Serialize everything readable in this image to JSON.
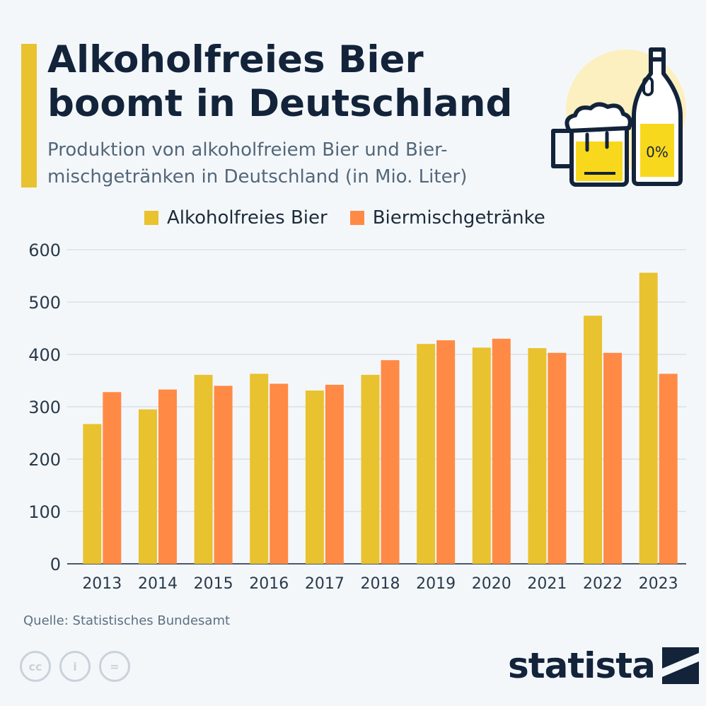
{
  "header": {
    "title": "Alkoholfreies Bier boomt in Deutschland",
    "subtitle": "Produktion von alkoholfreiem Bier und Bier-mischgetränken in Deutschland (in Mio. Liter)"
  },
  "illustration": {
    "bottle_label": "0%",
    "icons": [
      "beer-mug-icon",
      "beer-bottle-icon"
    ]
  },
  "colors": {
    "accent": "#e8c22f",
    "series1": "#e8c22f",
    "series2": "#ff8a45",
    "title": "#12233a",
    "grid": "#cdd5dd"
  },
  "chart_data": {
    "type": "bar",
    "categories": [
      "2013",
      "2014",
      "2015",
      "2016",
      "2017",
      "2018",
      "2019",
      "2020",
      "2021",
      "2022",
      "2023"
    ],
    "series": [
      {
        "name": "Alkoholfreies Bier",
        "values": [
          267,
          295,
          361,
          363,
          331,
          361,
          420,
          413,
          412,
          474,
          556
        ]
      },
      {
        "name": "Biermischgetränke",
        "values": [
          328,
          333,
          340,
          344,
          342,
          389,
          427,
          430,
          403,
          403,
          363
        ]
      }
    ],
    "ylim": [
      0,
      600
    ],
    "yticks": [
      0,
      100,
      200,
      300,
      400,
      500,
      600
    ],
    "grid": true,
    "legend": "top"
  },
  "footer": {
    "source": "Quelle: Statistisches Bundesamt",
    "brand": "statista",
    "license_icons": [
      "cc-icon",
      "attribution-icon",
      "no-derivatives-icon"
    ],
    "license_labels": [
      "cc",
      "i",
      "="
    ]
  }
}
